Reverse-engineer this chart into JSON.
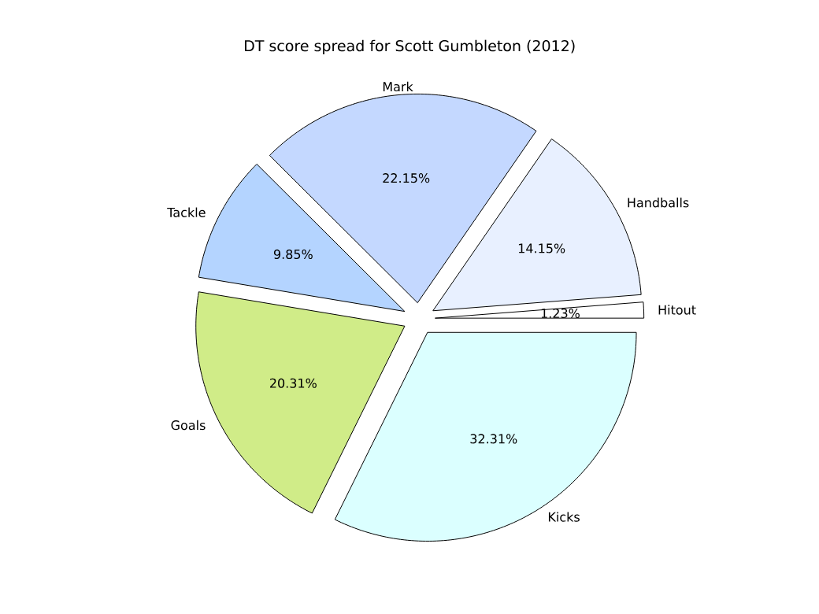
{
  "chart_data": {
    "type": "pie",
    "title": "DT score spread for Scott Gumbleton (2012)",
    "categories": [
      "Kicks",
      "Hitout",
      "Handballs",
      "Mark",
      "Tackle",
      "Goals"
    ],
    "values": [
      32.31,
      1.23,
      14.15,
      22.15,
      9.85,
      20.31
    ],
    "value_labels": [
      "32.31%",
      "1.23%",
      "14.15%",
      "22.15%",
      "9.85%",
      "20.31%"
    ],
    "colors": [
      "#dbffff",
      "#ffffff",
      "#e8f0ff",
      "#c4d8ff",
      "#b4d4ff",
      "#d0ec88"
    ]
  }
}
